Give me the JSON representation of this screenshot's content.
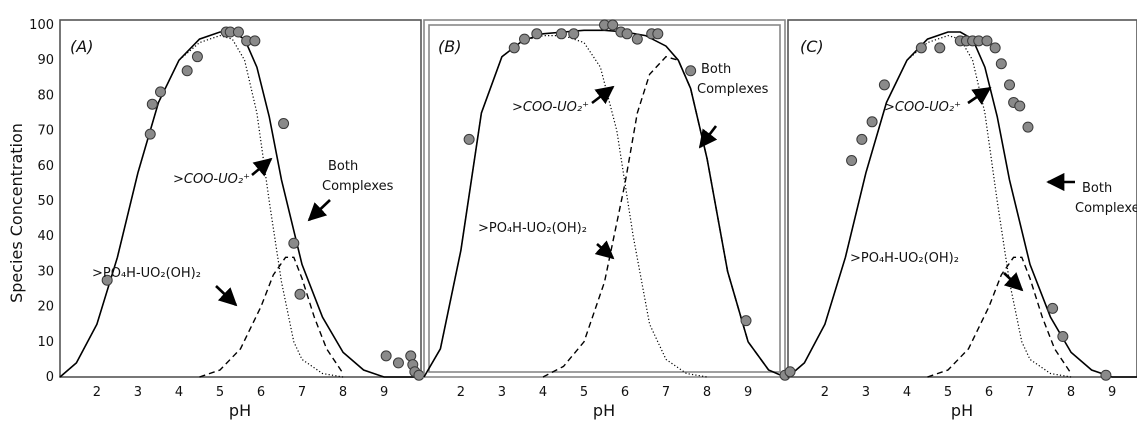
{
  "chart_data": [
    {
      "type": "line",
      "panel_label": "(A)",
      "xlabel": "pH",
      "ylabel": "Species Concentration",
      "xlim": [
        1.1,
        9.9
      ],
      "ylim": [
        0,
        100
      ],
      "x_ticks": [
        "2",
        "3",
        "4",
        "5",
        "6",
        "7",
        "8",
        "9"
      ],
      "y_ticks": [
        "0",
        "10",
        "20",
        "30",
        "40",
        "50",
        "60",
        "70",
        "80",
        "90",
        "100"
      ],
      "series": [
        {
          "key": "both",
          "style": "solid",
          "x": [
            1.1,
            1.5,
            2.0,
            2.5,
            3.0,
            3.5,
            4.0,
            4.5,
            5.0,
            5.3,
            5.6,
            5.9,
            6.2,
            6.5,
            7.0,
            7.5,
            8.0,
            8.5,
            9.0,
            9.5,
            9.9
          ],
          "y": [
            0,
            4,
            15,
            34,
            58,
            78,
            90,
            96,
            98,
            98,
            96,
            88,
            74,
            56,
            32,
            17,
            7,
            2,
            0,
            0,
            0
          ]
        },
        {
          "key": "coo",
          "style": "dotted",
          "x": [
            1.1,
            1.5,
            2.0,
            2.5,
            3.0,
            3.5,
            4.0,
            4.5,
            5.0,
            5.3,
            5.6,
            5.9,
            6.2,
            6.5,
            6.8,
            7.0,
            7.5,
            8.0
          ],
          "y": [
            0,
            4,
            15,
            34,
            58,
            78,
            90,
            95,
            97,
            96,
            90,
            75,
            50,
            27,
            10,
            5,
            1,
            0
          ]
        },
        {
          "key": "po4",
          "style": "dashed",
          "x": [
            4.5,
            5.0,
            5.5,
            6.0,
            6.3,
            6.6,
            6.8,
            7.0,
            7.3,
            7.6,
            8.0
          ],
          "y": [
            0,
            2,
            8,
            20,
            29,
            34,
            34,
            28,
            17,
            8,
            1
          ]
        },
        {
          "key": "observed",
          "style": "markers",
          "x": [
            2.25,
            3.3,
            3.35,
            3.55,
            4.2,
            4.45,
            5.15,
            5.25,
            5.45,
            5.65,
            5.85,
            6.55,
            6.8,
            6.95,
            9.05,
            9.35,
            9.65,
            9.7,
            9.75,
            9.85
          ],
          "y": [
            27.5,
            69,
            77.5,
            81,
            87,
            91,
            98,
            98,
            98,
            95.5,
            95.5,
            72,
            38,
            23.5,
            6,
            4,
            6,
            3.5,
            1.5,
            0.5
          ]
        }
      ],
      "annotations": {
        "coo": ">COO-UO₂⁺",
        "po4": ">PO₄H-UO₂(OH)₂",
        "both_line1": "Both",
        "both_line2": "Complexes"
      }
    },
    {
      "type": "line",
      "panel_label": "(B)",
      "xlabel": "pH",
      "ylabel": "",
      "xlim": [
        1.1,
        9.9
      ],
      "ylim": [
        0,
        100
      ],
      "x_ticks": [
        "2",
        "3",
        "4",
        "5",
        "6",
        "7",
        "8",
        "9"
      ],
      "series": [
        {
          "key": "both",
          "style": "solid",
          "x": [
            1.1,
            1.5,
            2.0,
            2.5,
            3.0,
            3.5,
            4.0,
            4.5,
            5.0,
            5.5,
            6.0,
            6.5,
            7.0,
            7.3,
            7.6,
            8.0,
            8.5,
            9.0,
            9.5,
            9.9
          ],
          "y": [
            0,
            8,
            36,
            75,
            91,
            95.5,
            97.5,
            98,
            98.5,
            98.5,
            98,
            97,
            94,
            90,
            82,
            62,
            30,
            10,
            2,
            0
          ]
        },
        {
          "key": "coo",
          "style": "dotted",
          "x": [
            1.1,
            1.5,
            2.0,
            2.5,
            3.0,
            3.5,
            4.0,
            4.5,
            5.0,
            5.4,
            5.8,
            6.2,
            6.6,
            7.0,
            7.5,
            8.0
          ],
          "y": [
            0,
            8,
            36,
            75,
            91,
            95.5,
            97,
            97,
            95,
            88,
            70,
            40,
            15,
            5,
            1,
            0
          ]
        },
        {
          "key": "po4",
          "style": "dashed",
          "x": [
            4.0,
            4.5,
            5.0,
            5.5,
            6.0,
            6.3,
            6.6,
            7.0,
            7.3,
            7.6,
            8.0,
            8.5,
            9.0,
            9.5
          ],
          "y": [
            0,
            3,
            10,
            27,
            55,
            75,
            86,
            91,
            90,
            82,
            62,
            30,
            10,
            2
          ]
        },
        {
          "key": "observed",
          "style": "markers",
          "x": [
            2.2,
            3.3,
            3.55,
            3.85,
            4.45,
            4.75,
            5.5,
            5.7,
            5.9,
            6.05,
            6.3,
            6.65,
            6.8,
            7.6,
            8.95,
            9.9
          ],
          "y": [
            67.5,
            93.5,
            96,
            97.5,
            97.5,
            97.5,
            100,
            100,
            98,
            97.5,
            96,
            97.5,
            97.5,
            87,
            16,
            0.5
          ]
        }
      ],
      "annotations": {
        "coo": ">COO-UO₂⁺",
        "po4": ">PO₄H-UO₂(OH)₂",
        "both_line1": "Both",
        "both_line2": "Complexes"
      }
    },
    {
      "type": "line",
      "panel_label": "(C)",
      "xlabel": "pH",
      "ylabel": "",
      "xlim": [
        1.1,
        9.9
      ],
      "ylim": [
        0,
        100
      ],
      "x_ticks": [
        "2",
        "3",
        "4",
        "5",
        "6",
        "7",
        "8",
        "9"
      ],
      "series": [
        {
          "key": "both",
          "style": "solid",
          "x": [
            1.1,
            1.5,
            2.0,
            2.5,
            3.0,
            3.5,
            4.0,
            4.5,
            5.0,
            5.3,
            5.6,
            5.9,
            6.2,
            6.5,
            7.0,
            7.5,
            8.0,
            8.5,
            9.0,
            9.5,
            9.9
          ],
          "y": [
            0,
            4,
            15,
            34,
            58,
            78,
            90,
            96,
            98,
            98,
            96,
            88,
            74,
            56,
            32,
            17,
            7,
            2,
            0,
            0,
            0
          ]
        },
        {
          "key": "coo",
          "style": "dotted",
          "x": [
            1.1,
            1.5,
            2.0,
            2.5,
            3.0,
            3.5,
            4.0,
            4.5,
            5.0,
            5.3,
            5.6,
            5.9,
            6.2,
            6.5,
            6.8,
            7.0,
            7.5,
            8.0
          ],
          "y": [
            0,
            4,
            15,
            34,
            58,
            78,
            90,
            95,
            97,
            96,
            90,
            75,
            50,
            27,
            10,
            5,
            1,
            0
          ]
        },
        {
          "key": "po4",
          "style": "dashed",
          "x": [
            4.5,
            5.0,
            5.5,
            6.0,
            6.3,
            6.6,
            6.8,
            7.0,
            7.3,
            7.6,
            8.0
          ],
          "y": [
            0,
            2,
            8,
            20,
            29,
            34,
            34,
            28,
            17,
            8,
            1
          ]
        },
        {
          "key": "observed",
          "style": "markers",
          "x": [
            1.15,
            2.65,
            2.9,
            3.15,
            3.45,
            4.35,
            4.8,
            5.3,
            5.45,
            5.6,
            5.75,
            5.95,
            6.15,
            6.3,
            6.5,
            6.6,
            6.75,
            6.95,
            7.55,
            7.8,
            8.85
          ],
          "y": [
            1.5,
            61.5,
            67.5,
            72.5,
            83,
            93.5,
            93.5,
            95.5,
            95.5,
            95.5,
            95.5,
            95.5,
            93.5,
            89,
            83,
            78,
            77,
            71,
            19.5,
            11.5,
            0.5
          ]
        }
      ],
      "annotations": {
        "coo": ">COO-UO₂⁺",
        "po4": ">PO₄H-UO₂(OH)₂",
        "both_line1": "Both",
        "both_line2": "Complexes"
      }
    }
  ]
}
